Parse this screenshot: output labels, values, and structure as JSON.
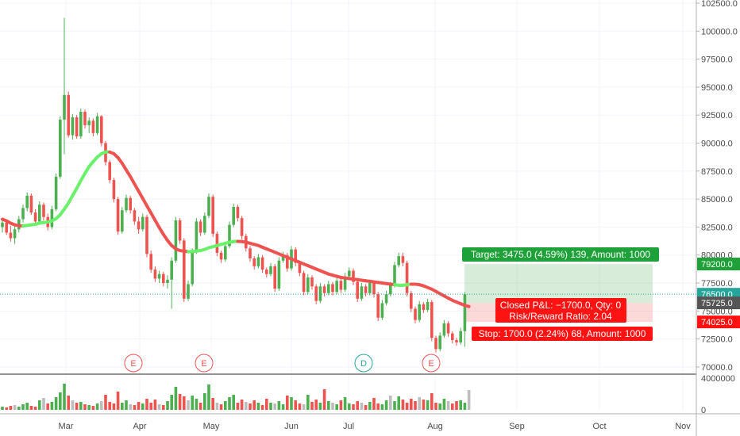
{
  "chart_data": {
    "type": "candlestick",
    "price_axis": {
      "ylim": [
        69500,
        102500
      ],
      "ticks": [
        "102500.0",
        "100000.0",
        "97500.0",
        "95000.0",
        "92500.0",
        "90000.0",
        "87500.0",
        "85000.0",
        "82500.0",
        "80000.0",
        "77500.0",
        "75000.0",
        "72500.0",
        "70000.0"
      ]
    },
    "volume_axis": {
      "ylim": [
        0,
        4300000
      ],
      "ticks": [
        "4000000",
        "0"
      ]
    },
    "x_axis": {
      "ticks": [
        "Mar",
        "Apr",
        "May",
        "Jun",
        "Jul",
        "Aug",
        "Sep",
        "Oct",
        "Nov"
      ]
    },
    "candles": [
      {
        "o": 82500,
        "h": 83300,
        "l": 82000,
        "c": 82900
      },
      {
        "o": 82900,
        "h": 83200,
        "l": 81800,
        "c": 82000
      },
      {
        "o": 82000,
        "h": 82600,
        "l": 81200,
        "c": 81500
      },
      {
        "o": 81500,
        "h": 82700,
        "l": 81000,
        "c": 82300
      },
      {
        "o": 82300,
        "h": 83500,
        "l": 82000,
        "c": 83200
      },
      {
        "o": 83200,
        "h": 84500,
        "l": 82900,
        "c": 84200
      },
      {
        "o": 84200,
        "h": 85600,
        "l": 83900,
        "c": 85300
      },
      {
        "o": 85300,
        "h": 85500,
        "l": 83600,
        "c": 83800
      },
      {
        "o": 83800,
        "h": 84100,
        "l": 82700,
        "c": 83000
      },
      {
        "o": 83000,
        "h": 84800,
        "l": 82800,
        "c": 84500
      },
      {
        "o": 84500,
        "h": 84700,
        "l": 83100,
        "c": 83400
      },
      {
        "o": 83400,
        "h": 83700,
        "l": 82200,
        "c": 82500
      },
      {
        "o": 82500,
        "h": 84400,
        "l": 82300,
        "c": 84100
      },
      {
        "o": 84100,
        "h": 87300,
        "l": 83900,
        "c": 87000
      },
      {
        "o": 87000,
        "h": 92400,
        "l": 86800,
        "c": 92100
      },
      {
        "o": 92100,
        "h": 101200,
        "l": 89000,
        "c": 94300
      },
      {
        "o": 94300,
        "h": 94600,
        "l": 90500,
        "c": 90700
      },
      {
        "o": 90700,
        "h": 92600,
        "l": 90300,
        "c": 92300
      },
      {
        "o": 92300,
        "h": 92500,
        "l": 90400,
        "c": 90600
      },
      {
        "o": 90600,
        "h": 93100,
        "l": 90400,
        "c": 92800
      },
      {
        "o": 92800,
        "h": 93000,
        "l": 91300,
        "c": 91600
      },
      {
        "o": 91600,
        "h": 92300,
        "l": 90900,
        "c": 92000
      },
      {
        "o": 92000,
        "h": 92200,
        "l": 90600,
        "c": 90900
      },
      {
        "o": 90900,
        "h": 92700,
        "l": 90700,
        "c": 92400
      },
      {
        "o": 92400,
        "h": 92500,
        "l": 89700,
        "c": 90000
      },
      {
        "o": 90000,
        "h": 90200,
        "l": 88000,
        "c": 88300
      },
      {
        "o": 88300,
        "h": 88500,
        "l": 86400,
        "c": 86700
      },
      {
        "o": 86700,
        "h": 86900,
        "l": 84700,
        "c": 85000
      },
      {
        "o": 85000,
        "h": 85200,
        "l": 81800,
        "c": 82100
      },
      {
        "o": 82100,
        "h": 84300,
        "l": 81900,
        "c": 84000
      },
      {
        "o": 84000,
        "h": 85400,
        "l": 83800,
        "c": 85100
      },
      {
        "o": 85100,
        "h": 85300,
        "l": 83700,
        "c": 84000
      },
      {
        "o": 84000,
        "h": 84200,
        "l": 82700,
        "c": 83000
      },
      {
        "o": 83000,
        "h": 83400,
        "l": 81900,
        "c": 82300
      },
      {
        "o": 82300,
        "h": 83700,
        "l": 82100,
        "c": 83400
      },
      {
        "o": 83400,
        "h": 83600,
        "l": 79800,
        "c": 80100
      },
      {
        "o": 80100,
        "h": 80400,
        "l": 78400,
        "c": 78700
      },
      {
        "o": 78700,
        "h": 79000,
        "l": 77600,
        "c": 77900
      },
      {
        "o": 77900,
        "h": 78600,
        "l": 77500,
        "c": 78300
      },
      {
        "o": 78300,
        "h": 78500,
        "l": 77200,
        "c": 77500
      },
      {
        "o": 77500,
        "h": 78200,
        "l": 77000,
        "c": 77800
      },
      {
        "o": 77800,
        "h": 79800,
        "l": 75200,
        "c": 79500
      },
      {
        "o": 79500,
        "h": 83400,
        "l": 79300,
        "c": 83100
      },
      {
        "o": 83100,
        "h": 83300,
        "l": 81000,
        "c": 81300
      },
      {
        "o": 81300,
        "h": 81500,
        "l": 75800,
        "c": 76100
      },
      {
        "o": 76100,
        "h": 77700,
        "l": 75900,
        "c": 77400
      },
      {
        "o": 77400,
        "h": 80600,
        "l": 77200,
        "c": 80300
      },
      {
        "o": 80300,
        "h": 83300,
        "l": 80100,
        "c": 83000
      },
      {
        "o": 83000,
        "h": 83200,
        "l": 81700,
        "c": 82000
      },
      {
        "o": 82000,
        "h": 83800,
        "l": 81800,
        "c": 83500
      },
      {
        "o": 83500,
        "h": 85500,
        "l": 83300,
        "c": 85200
      },
      {
        "o": 85200,
        "h": 85400,
        "l": 81600,
        "c": 81900
      },
      {
        "o": 81900,
        "h": 82100,
        "l": 79900,
        "c": 80200
      },
      {
        "o": 80200,
        "h": 80400,
        "l": 79300,
        "c": 79600
      },
      {
        "o": 79600,
        "h": 81100,
        "l": 79400,
        "c": 80800
      },
      {
        "o": 80800,
        "h": 83000,
        "l": 80600,
        "c": 82700
      },
      {
        "o": 82700,
        "h": 84600,
        "l": 82500,
        "c": 84300
      },
      {
        "o": 84300,
        "h": 84500,
        "l": 83000,
        "c": 83300
      },
      {
        "o": 83300,
        "h": 83500,
        "l": 81400,
        "c": 81700
      },
      {
        "o": 81700,
        "h": 81900,
        "l": 80300,
        "c": 80600
      },
      {
        "o": 80600,
        "h": 80800,
        "l": 79400,
        "c": 79700
      },
      {
        "o": 79700,
        "h": 79900,
        "l": 78700,
        "c": 79000
      },
      {
        "o": 79000,
        "h": 80100,
        "l": 78800,
        "c": 79800
      },
      {
        "o": 79800,
        "h": 80000,
        "l": 78400,
        "c": 78700
      },
      {
        "o": 78700,
        "h": 78900,
        "l": 78000,
        "c": 78300
      },
      {
        "o": 78300,
        "h": 79300,
        "l": 78100,
        "c": 79000
      },
      {
        "o": 79000,
        "h": 79200,
        "l": 76700,
        "c": 77000
      },
      {
        "o": 77000,
        "h": 79800,
        "l": 76800,
        "c": 79500
      },
      {
        "o": 79500,
        "h": 80300,
        "l": 79300,
        "c": 80000
      },
      {
        "o": 80000,
        "h": 80200,
        "l": 78500,
        "c": 78800
      },
      {
        "o": 78800,
        "h": 80800,
        "l": 78600,
        "c": 80500
      },
      {
        "o": 80500,
        "h": 80700,
        "l": 79000,
        "c": 79300
      },
      {
        "o": 79300,
        "h": 79500,
        "l": 78100,
        "c": 78400
      },
      {
        "o": 78400,
        "h": 78600,
        "l": 76400,
        "c": 76700
      },
      {
        "o": 76700,
        "h": 78300,
        "l": 76500,
        "c": 78000
      },
      {
        "o": 78000,
        "h": 78200,
        "l": 76900,
        "c": 77200
      },
      {
        "o": 77200,
        "h": 77400,
        "l": 75600,
        "c": 75900
      },
      {
        "o": 75900,
        "h": 77500,
        "l": 75700,
        "c": 77200
      },
      {
        "o": 77200,
        "h": 77400,
        "l": 76300,
        "c": 76600
      },
      {
        "o": 76600,
        "h": 77700,
        "l": 76400,
        "c": 77400
      },
      {
        "o": 77400,
        "h": 77600,
        "l": 76400,
        "c": 76700
      },
      {
        "o": 76700,
        "h": 78000,
        "l": 76500,
        "c": 77700
      },
      {
        "o": 77700,
        "h": 77900,
        "l": 76600,
        "c": 76900
      },
      {
        "o": 76900,
        "h": 78400,
        "l": 76700,
        "c": 78100
      },
      {
        "o": 78100,
        "h": 78900,
        "l": 77900,
        "c": 78600
      },
      {
        "o": 78600,
        "h": 78800,
        "l": 77300,
        "c": 77600
      },
      {
        "o": 77600,
        "h": 77800,
        "l": 75800,
        "c": 76100
      },
      {
        "o": 76100,
        "h": 77500,
        "l": 75900,
        "c": 77200
      },
      {
        "o": 77200,
        "h": 77400,
        "l": 76300,
        "c": 76600
      },
      {
        "o": 76600,
        "h": 77800,
        "l": 76400,
        "c": 77500
      },
      {
        "o": 77500,
        "h": 77700,
        "l": 76200,
        "c": 76500
      },
      {
        "o": 76500,
        "h": 76700,
        "l": 74100,
        "c": 74400
      },
      {
        "o": 74400,
        "h": 76000,
        "l": 74200,
        "c": 75700
      },
      {
        "o": 75700,
        "h": 76800,
        "l": 75500,
        "c": 76500
      },
      {
        "o": 76500,
        "h": 77600,
        "l": 76300,
        "c": 77300
      },
      {
        "o": 77300,
        "h": 79400,
        "l": 77100,
        "c": 79100
      },
      {
        "o": 79100,
        "h": 80200,
        "l": 78900,
        "c": 79900
      },
      {
        "o": 79900,
        "h": 80200,
        "l": 79000,
        "c": 79300
      },
      {
        "o": 79300,
        "h": 79500,
        "l": 76300,
        "c": 76600
      },
      {
        "o": 76600,
        "h": 76800,
        "l": 74900,
        "c": 75200
      },
      {
        "o": 75200,
        "h": 75400,
        "l": 73900,
        "c": 74200
      },
      {
        "o": 74200,
        "h": 75900,
        "l": 74000,
        "c": 75600
      },
      {
        "o": 75600,
        "h": 75800,
        "l": 74800,
        "c": 75100
      },
      {
        "o": 75100,
        "h": 76100,
        "l": 74900,
        "c": 75800
      },
      {
        "o": 75800,
        "h": 76000,
        "l": 72300,
        "c": 72600
      },
      {
        "o": 72600,
        "h": 72800,
        "l": 71300,
        "c": 71600
      },
      {
        "o": 71600,
        "h": 73100,
        "l": 71400,
        "c": 72800
      },
      {
        "o": 72800,
        "h": 74200,
        "l": 72600,
        "c": 73900
      },
      {
        "o": 73900,
        "h": 74100,
        "l": 72700,
        "c": 73000
      },
      {
        "o": 73000,
        "h": 73200,
        "l": 72100,
        "c": 72400
      },
      {
        "o": 72400,
        "h": 72600,
        "l": 71900,
        "c": 72200
      },
      {
        "o": 72200,
        "h": 73500,
        "l": 72000,
        "c": 73200
      },
      {
        "o": 73200,
        "h": 76700,
        "l": 71800,
        "c": 76500
      }
    ],
    "ma": [
      83200,
      83050,
      82850,
      82700,
      82620,
      82600,
      82650,
      82700,
      82750,
      82850,
      82900,
      82950,
      83050,
      83250,
      83600,
      84100,
      84650,
      85300,
      85950,
      86650,
      87300,
      87900,
      88350,
      88750,
      89050,
      89200,
      89200,
      89050,
      88700,
      88200,
      87600,
      87000,
      86350,
      85700,
      85050,
      84400,
      83750,
      83100,
      82450,
      81850,
      81300,
      80850,
      80550,
      80400,
      80350,
      80300,
      80320,
      80350,
      80400,
      80500,
      80650,
      80750,
      80850,
      80950,
      81050,
      81150,
      81200,
      81220,
      81200,
      81150,
      81050,
      80950,
      80850,
      80700,
      80550,
      80400,
      80250,
      80100,
      79950,
      79800,
      79650,
      79500,
      79350,
      79200,
      79050,
      78900,
      78750,
      78600,
      78450,
      78300,
      78200,
      78100,
      78000,
      77950,
      77900,
      77850,
      77800,
      77750,
      77700,
      77650,
      77600,
      77550,
      77500,
      77450,
      77400,
      77350,
      77300,
      77300,
      77350,
      77400,
      77400,
      77350,
      77250,
      77100,
      76950,
      76750,
      76550,
      76350,
      76150,
      75950,
      75800,
      75650,
      75500,
      75400
    ],
    "ma_trend": [
      "down",
      "down",
      "down",
      "down",
      "down",
      "up",
      "up",
      "up",
      "up",
      "up",
      "up",
      "up",
      "up",
      "up",
      "up",
      "up",
      "up",
      "up",
      "up",
      "up",
      "up",
      "up",
      "up",
      "up",
      "up",
      "up",
      "down",
      "down",
      "down",
      "down",
      "down",
      "down",
      "down",
      "down",
      "down",
      "down",
      "down",
      "down",
      "down",
      "down",
      "down",
      "down",
      "down",
      "down",
      "down",
      "up",
      "up",
      "up",
      "up",
      "up",
      "up",
      "up",
      "up",
      "up",
      "up",
      "up",
      "up",
      "down",
      "down",
      "down",
      "down",
      "down",
      "down",
      "down",
      "down",
      "down",
      "down",
      "down",
      "down",
      "down",
      "down",
      "down",
      "down",
      "down",
      "down",
      "down",
      "down",
      "down",
      "down",
      "down",
      "down",
      "down",
      "down",
      "down",
      "down",
      "down",
      "down",
      "down",
      "down",
      "down",
      "down",
      "down",
      "down",
      "down",
      "down",
      "up",
      "up",
      "up",
      "up",
      "down",
      "down",
      "down",
      "down",
      "down",
      "down",
      "down",
      "down",
      "down",
      "down",
      "down",
      "down",
      "down"
    ],
    "volumes": [
      400000,
      300000,
      500000,
      600000,
      400000,
      700000,
      900000,
      500000,
      400000,
      1200000,
      1500000,
      800000,
      1000000,
      1600000,
      2200000,
      3300000,
      1800000,
      1200000,
      900000,
      1000000,
      700000,
      600000,
      500000,
      800000,
      1100000,
      1900000,
      1000000,
      800000,
      2300000,
      900000,
      1200000,
      700000,
      600000,
      1000000,
      800000,
      1400000,
      900000,
      1300000,
      700000,
      600000,
      1100000,
      1900000,
      2900000,
      2000000,
      1700000,
      1200000,
      1800000,
      1400000,
      900000,
      2100000,
      3200000,
      1500000,
      900000,
      700000,
      1100000,
      1600000,
      1900000,
      900000,
      1300000,
      1000000,
      800000,
      1200000,
      900000,
      600000,
      1400000,
      900000,
      800000,
      1100000,
      700000,
      1800000,
      1600000,
      1200000,
      800000,
      700000,
      1900000,
      1000000,
      1300000,
      900000,
      2600000,
      1100000,
      900000,
      700000,
      1200000,
      1600000,
      800000,
      700000,
      1100000,
      900000,
      600000,
      1000000,
      1500000,
      800000,
      700000,
      1200000,
      1800000,
      1100000,
      1700000,
      1300000,
      900000,
      1400000,
      1100000,
      1600000,
      1300000,
      1200000,
      2100000,
      900000,
      800000,
      1400000,
      1100000,
      800000,
      1100000,
      1200000,
      900000,
      2500000
    ],
    "position": {
      "entry": "75725.0",
      "target_price": "79200.0",
      "stop_price": "74025.0",
      "target_label": "Target: 3475.0 (4.59%) 139, Amount: 1000",
      "stop_label": "Stop: 1700.0 (2.24%) 68, Amount: 1000",
      "closed_pnl": "Closed P&L: −1700.0, Qty: 0",
      "risk_reward": "Risk/Reward Ratio: 2.04"
    },
    "last_price": "76500.0",
    "events": [
      {
        "letter": "E",
        "color": "#ef5350"
      },
      {
        "letter": "E",
        "color": "#ef5350"
      },
      {
        "letter": "D",
        "color": "#26a69a"
      },
      {
        "letter": "E",
        "color": "#ef5350"
      }
    ],
    "colors": {
      "up": "#4caf50",
      "down": "#ef5350",
      "ma_up": "#69f16a",
      "ma_down": "#ef5350",
      "vol_up": "#4caf50",
      "vol_down": "#ef5350",
      "vol_neutral": "#bdbdbd",
      "target_badge": "#1ea138",
      "stop_badge": "#ff1212",
      "entry_badge": "#555555",
      "last_badge": "#26a69a"
    }
  }
}
